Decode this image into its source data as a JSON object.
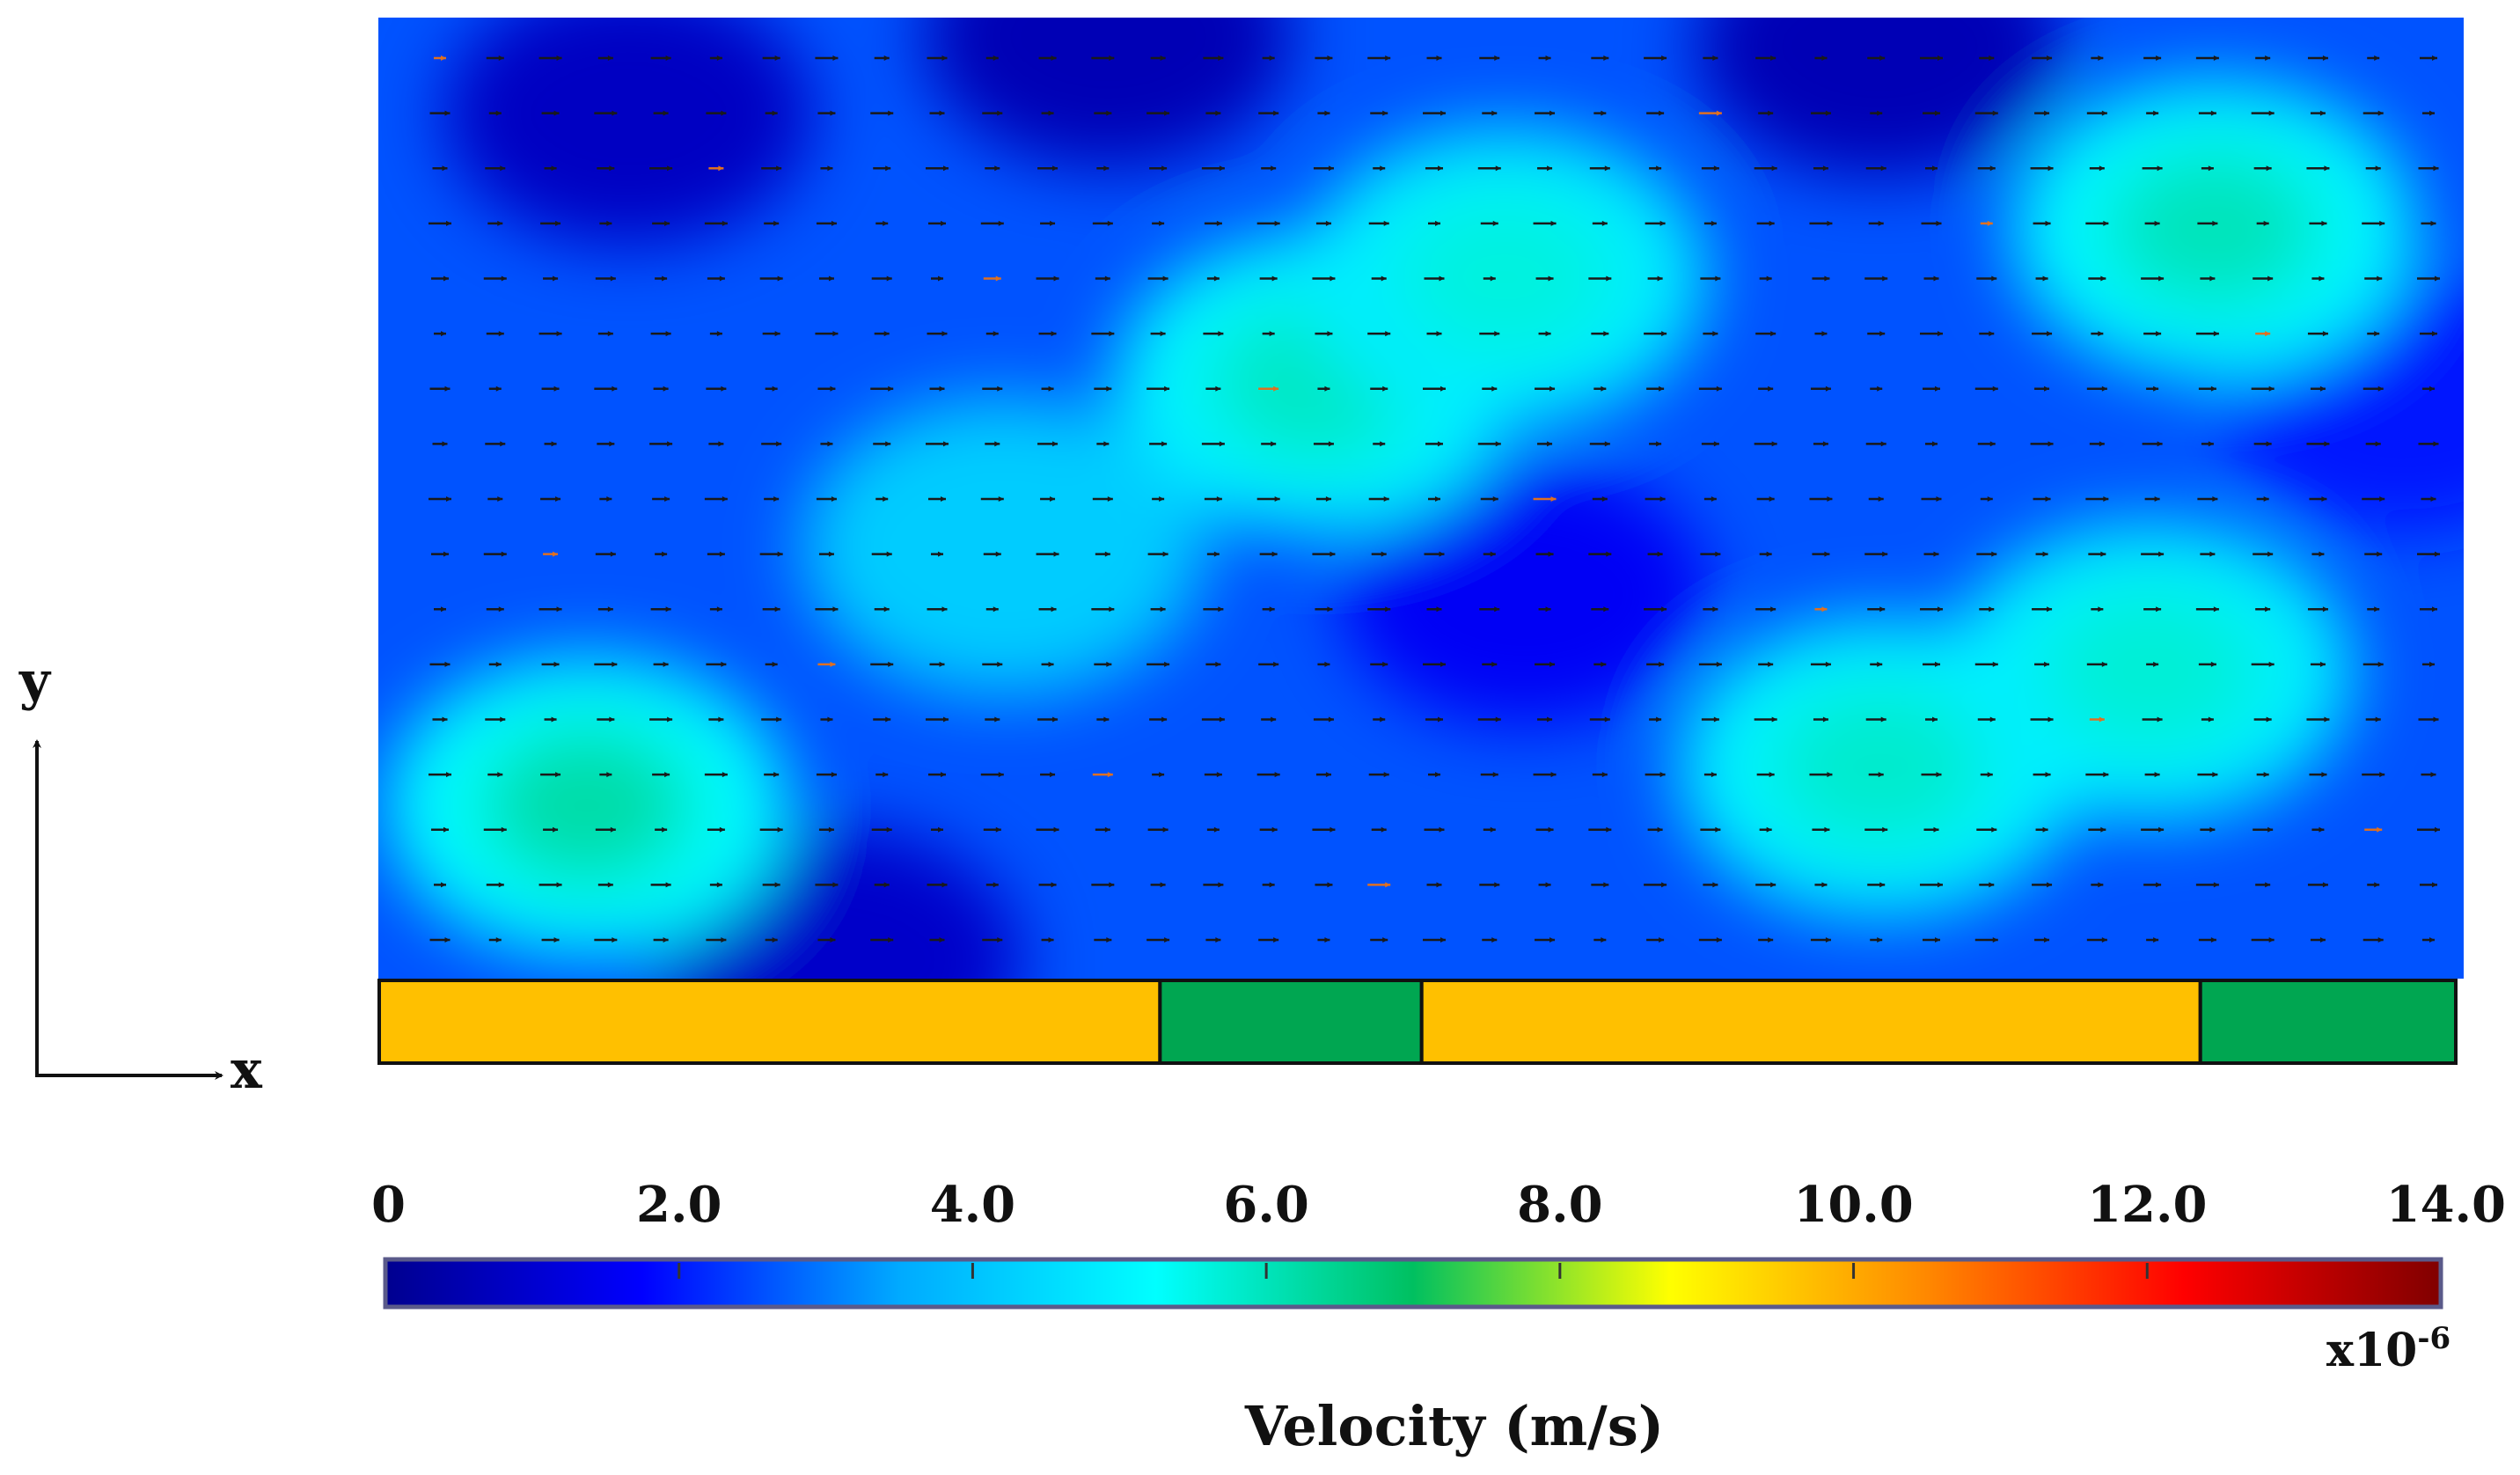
{
  "chart_data": {
    "type": "heatmap",
    "title": "",
    "description_of_field": "velocity vector field over channel with bottom boundary segments",
    "x_axis_label": "x",
    "y_axis_label": "y",
    "colorbar": {
      "label": "Velocity (m/s)",
      "multiplier": "x10",
      "multiplier_exponent": "-6",
      "range": [
        0,
        14
      ],
      "ticks": [
        {
          "value": 0,
          "label": "0"
        },
        {
          "value": 2,
          "label": "2.0"
        },
        {
          "value": 4,
          "label": "4.0"
        },
        {
          "value": 6,
          "label": "6.0"
        },
        {
          "value": 8,
          "label": "8.0"
        },
        {
          "value": 10,
          "label": "10.0"
        },
        {
          "value": 12,
          "label": "12.0"
        },
        {
          "value": 14,
          "label": "14.0"
        }
      ],
      "colormap": [
        "#00008f",
        "#0000ff",
        "#00aaff",
        "#00ffff",
        "#00c060",
        "#ffff00",
        "#ff8800",
        "#ff0000",
        "#800000"
      ]
    },
    "field": {
      "base_speed": 2.6,
      "grid_cols": 37,
      "grid_rows": 17,
      "high_speed_regions": [
        {
          "cx": 0.1,
          "cy": 0.82,
          "speed": 6.2
        },
        {
          "cx": 0.45,
          "cy": 0.38,
          "speed": 5.9
        },
        {
          "cx": 0.54,
          "cy": 0.27,
          "speed": 5.6
        },
        {
          "cx": 0.88,
          "cy": 0.22,
          "speed": 6.0
        },
        {
          "cx": 0.72,
          "cy": 0.78,
          "speed": 5.8
        },
        {
          "cx": 0.85,
          "cy": 0.68,
          "speed": 5.7
        },
        {
          "cx": 0.3,
          "cy": 0.55,
          "speed": 4.2
        }
      ],
      "low_speed_regions": [
        {
          "cx": 0.12,
          "cy": 0.1,
          "speed": 0.8
        },
        {
          "cx": 0.35,
          "cy": 0.02,
          "speed": 0.6
        },
        {
          "cx": 0.72,
          "cy": 0.03,
          "speed": 0.6
        },
        {
          "cx": 0.55,
          "cy": 0.6,
          "speed": 1.6
        },
        {
          "cx": 0.22,
          "cy": 0.98,
          "speed": 0.9
        },
        {
          "cx": 0.97,
          "cy": 0.4,
          "speed": 2.0
        }
      ]
    },
    "boundary_segments": [
      {
        "start": 0.0,
        "end": 0.376,
        "type": "segment-a",
        "color": "#ffc000"
      },
      {
        "start": 0.376,
        "end": 0.502,
        "type": "segment-b",
        "color": "#00a651"
      },
      {
        "start": 0.502,
        "end": 0.877,
        "type": "segment-a",
        "color": "#ffc000"
      },
      {
        "start": 0.877,
        "end": 1.0,
        "type": "segment-b",
        "color": "#00a651"
      }
    ]
  }
}
